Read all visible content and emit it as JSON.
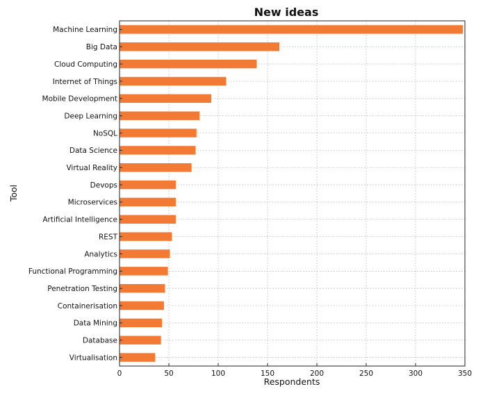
{
  "chart_data": {
    "type": "bar",
    "orientation": "horizontal",
    "title": "New ideas",
    "xlabel": "Respondents",
    "ylabel": "Tool",
    "categories": [
      "Machine Learning",
      "Big Data",
      "Cloud Computing",
      "Internet of Things",
      "Mobile Development",
      "Deep Learning",
      "NoSQL",
      "Data Science",
      "Virtual Reality",
      "Devops",
      "Microservices",
      "Artificial Intelligence",
      "REST",
      "Analytics",
      "Functional Programming",
      "Penetration Testing",
      "Containerisation",
      "Data Mining",
      "Database",
      "Virtualisation"
    ],
    "values": [
      348,
      162,
      139,
      108,
      93,
      81,
      78,
      77,
      73,
      57,
      57,
      57,
      53,
      51,
      49,
      46,
      45,
      43,
      42,
      36
    ],
    "xlim": [
      0,
      350
    ],
    "xticks": [
      0,
      50,
      100,
      150,
      200,
      250,
      300,
      350
    ],
    "grid": true,
    "bar_color": "#f27a35"
  }
}
